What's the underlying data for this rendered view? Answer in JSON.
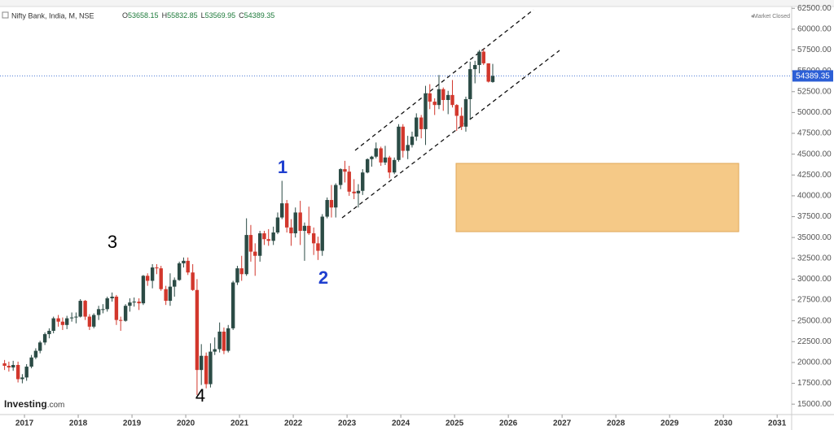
{
  "chart_data": {
    "type": "candlestick",
    "title": "Nifty Bank, India, M, NSE",
    "ohlc_header": [
      {
        "label": "O",
        "value": 53658.15
      },
      {
        "label": "H",
        "value": 55832.85
      },
      {
        "label": "L",
        "value": 53569.95
      },
      {
        "label": "C",
        "value": 54389.35
      }
    ],
    "status": "Market Closed",
    "brand": "Investing",
    "brand_suffix": ".com",
    "annotations": [
      {
        "text": "1",
        "color": "#1f3fcf"
      },
      {
        "text": "2",
        "color": "#1f3fcf"
      },
      {
        "text": "3",
        "color": "#000000"
      },
      {
        "text": "4",
        "color": "#000000"
      }
    ],
    "last_price": 54389.35,
    "up_color": "#2b4b45",
    "down_color": "#d2372c",
    "x": [
      2016.63,
      2016.71,
      2016.79,
      2016.88,
      2016.96,
      2017.04,
      2017.13,
      2017.21,
      2017.29,
      2017.38,
      2017.46,
      2017.54,
      2017.63,
      2017.71,
      2017.79,
      2017.88,
      2017.96,
      2018.04,
      2018.13,
      2018.21,
      2018.29,
      2018.38,
      2018.46,
      2018.54,
      2018.63,
      2018.71,
      2018.79,
      2018.88,
      2018.96,
      2019.04,
      2019.13,
      2019.21,
      2019.29,
      2019.38,
      2019.46,
      2019.54,
      2019.63,
      2019.71,
      2019.79,
      2019.88,
      2019.96,
      2020.04,
      2020.13,
      2020.21,
      2020.29,
      2020.38,
      2020.46,
      2020.54,
      2020.63,
      2020.71,
      2020.79,
      2020.88,
      2020.96,
      2021.04,
      2021.13,
      2021.21,
      2021.29,
      2021.38,
      2021.46,
      2021.54,
      2021.63,
      2021.71,
      2021.79,
      2021.88,
      2021.96,
      2022.04,
      2022.13,
      2022.21,
      2022.29,
      2022.38,
      2022.46,
      2022.54,
      2022.63,
      2022.71,
      2022.79,
      2022.88,
      2022.96,
      2023.04,
      2023.13,
      2023.21,
      2023.29,
      2023.38,
      2023.46,
      2023.54,
      2023.63,
      2023.71,
      2023.79,
      2023.88,
      2023.96,
      2024.04,
      2024.13,
      2024.21,
      2024.29,
      2024.38,
      2024.46,
      2024.54,
      2024.63,
      2024.71,
      2024.79,
      2024.88,
      2024.96,
      2025.04,
      2025.13,
      2025.21,
      2025.29,
      2025.38,
      2025.46,
      2025.54,
      2025.63,
      2025.71
    ],
    "open": [
      19900,
      19600,
      19400,
      19700,
      18000,
      18200,
      19500,
      20600,
      21400,
      22400,
      23400,
      23800,
      25300,
      24900,
      24500,
      25300,
      25400,
      25500,
      27400,
      25500,
      24300,
      25700,
      26400,
      26400,
      27700,
      27900,
      25100,
      25000,
      26800,
      27200,
      27300,
      27100,
      30400,
      29800,
      31400,
      31300,
      28800,
      27400,
      29100,
      29900,
      31900,
      32200,
      30800,
      28700,
      19100,
      20800,
      17400,
      21300,
      21600,
      23700,
      21400,
      24100,
      29600,
      31300,
      30600,
      35300,
      33300,
      32800,
      35500,
      34800,
      34600,
      35600,
      37400,
      39100,
      36200,
      35500,
      38000,
      35800,
      36400,
      35500,
      34300,
      33400,
      37500,
      39500,
      38600,
      41300,
      43200,
      42900,
      40500,
      40300,
      40600,
      42800,
      44400,
      44700,
      45700,
      44000,
      44600,
      42800,
      44300,
      48300,
      45400,
      46100,
      47100,
      49400,
      48000,
      52300,
      51300,
      50900,
      52800,
      51500,
      52100,
      50900,
      49600,
      48300,
      51600,
      55200,
      55700,
      57300,
      55900,
      53658.15
    ],
    "high": [
      20300,
      20100,
      20200,
      20100,
      18600,
      19800,
      20900,
      21700,
      22600,
      23600,
      24100,
      25500,
      25700,
      25400,
      25600,
      26000,
      26000,
      27600,
      27500,
      25800,
      25900,
      26800,
      27000,
      27900,
      28400,
      28100,
      25500,
      27000,
      27700,
      27800,
      27700,
      30500,
      30700,
      31800,
      31800,
      31600,
      29200,
      30700,
      30200,
      32100,
      32600,
      32600,
      31800,
      30000,
      22200,
      21200,
      22300,
      23000,
      24800,
      24200,
      24500,
      29800,
      31600,
      32800,
      37300,
      36500,
      34300,
      35800,
      35800,
      36000,
      36300,
      38000,
      41800,
      39500,
      37200,
      38600,
      39400,
      36800,
      38700,
      36200,
      35100,
      37800,
      39800,
      41300,
      41500,
      43300,
      44200,
      43600,
      42000,
      41400,
      43200,
      44500,
      44800,
      46400,
      45900,
      46000,
      44800,
      44600,
      48600,
      48600,
      47200,
      47700,
      49900,
      49700,
      53200,
      53400,
      51700,
      54500,
      53000,
      52600,
      53900,
      51000,
      50600,
      51900,
      56100,
      56200,
      57500,
      57600,
      55900,
      55832.85
    ],
    "low": [
      19100,
      18900,
      19000,
      17600,
      17500,
      17800,
      19300,
      20400,
      21100,
      22100,
      22900,
      23500,
      24300,
      23900,
      24000,
      24900,
      24700,
      25400,
      25100,
      23900,
      24100,
      25100,
      25900,
      26100,
      27300,
      24500,
      23800,
      24900,
      26100,
      26700,
      26300,
      26900,
      29200,
      28900,
      30600,
      28600,
      26900,
      26800,
      27900,
      29800,
      31400,
      30500,
      28600,
      16100,
      17300,
      16900,
      17000,
      20900,
      21200,
      21000,
      21200,
      23900,
      29300,
      29800,
      30400,
      32100,
      30400,
      32100,
      34100,
      34000,
      34100,
      35400,
      37200,
      35600,
      34000,
      35000,
      34100,
      32200,
      35300,
      32900,
      32300,
      32800,
      37300,
      37400,
      37400,
      40800,
      41600,
      40000,
      39600,
      38600,
      40100,
      42700,
      43500,
      44500,
      43600,
      43700,
      42100,
      42600,
      44100,
      44600,
      44400,
      45800,
      46600,
      46900,
      46100,
      50400,
      49700,
      50400,
      50200,
      49800,
      50600,
      47800,
      47900,
      47700,
      49200,
      53500,
      54700,
      55700,
      53600,
      53569.95
    ],
    "close": [
      19600,
      19400,
      19700,
      18000,
      18200,
      19500,
      20600,
      21400,
      22400,
      23400,
      23800,
      25300,
      24900,
      24500,
      25300,
      25400,
      25500,
      27400,
      25500,
      24300,
      25700,
      26400,
      26400,
      27700,
      27900,
      25100,
      25000,
      26800,
      27200,
      27300,
      27100,
      30400,
      29800,
      31400,
      31300,
      28800,
      27400,
      29100,
      29900,
      31900,
      32200,
      30800,
      28700,
      19100,
      20800,
      17400,
      21300,
      21600,
      23700,
      21400,
      24100,
      29600,
      31300,
      30600,
      35300,
      33300,
      32800,
      35500,
      34800,
      34600,
      35600,
      37400,
      39100,
      36200,
      35500,
      38000,
      35800,
      36400,
      35500,
      34300,
      33400,
      37500,
      39500,
      38600,
      41300,
      43200,
      42900,
      40500,
      40300,
      40600,
      42800,
      44400,
      44700,
      45700,
      44000,
      44600,
      42800,
      44300,
      48300,
      45400,
      46100,
      47100,
      49400,
      48000,
      52300,
      51300,
      50900,
      52800,
      51500,
      52100,
      50900,
      49600,
      48300,
      51600,
      55200,
      55700,
      57300,
      55900,
      53700,
      54389.35
    ],
    "xlim": [
      2016.545,
      2031.27
    ],
    "xticks": [
      2017,
      2018,
      2019,
      2020,
      2021,
      2022,
      2023,
      2024,
      2025,
      2026,
      2027,
      2028,
      2029,
      2030,
      2031
    ],
    "ylim": [
      13750,
      63500
    ],
    "yticks": [
      {
        "value": 15000,
        "label": "15000.00"
      },
      {
        "value": 17500,
        "label": "17500.00"
      },
      {
        "value": 20000,
        "label": "20000.00"
      },
      {
        "value": 22500,
        "label": "22500.00"
      },
      {
        "value": 25000,
        "label": "25000.00"
      },
      {
        "value": 27500,
        "label": "27500.00"
      },
      {
        "value": 30000,
        "label": "30000.00"
      },
      {
        "value": 32500,
        "label": "32500.00"
      },
      {
        "value": 35000,
        "label": "35000.00"
      },
      {
        "value": 37500,
        "label": "37500.00"
      },
      {
        "value": 40000,
        "label": "40000.00"
      },
      {
        "value": 42500,
        "label": "42500.00"
      },
      {
        "value": 45000,
        "label": "45000.00"
      },
      {
        "value": 47500,
        "label": "47500.00"
      },
      {
        "value": 50000,
        "label": "50000.00"
      },
      {
        "value": 52500,
        "label": "52500.00"
      },
      {
        "value": 55000,
        "label": "55000.00"
      },
      {
        "value": 57500,
        "label": "57500.00"
      },
      {
        "value": 60000,
        "label": "60000.00"
      },
      {
        "value": 62500,
        "label": "62500.00"
      }
    ]
  }
}
